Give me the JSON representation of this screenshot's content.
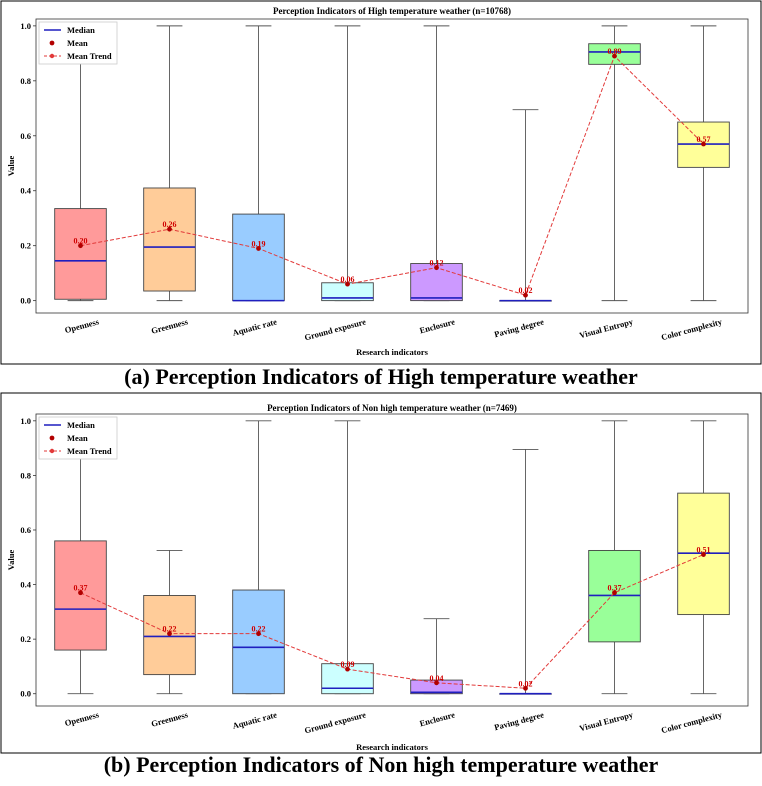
{
  "colors": {
    "median": "#1f1fbf",
    "mean": "#b20000",
    "trend": "#e23a3a",
    "box_fills": [
      "#ff9a9a",
      "#ffcc99",
      "#99ccff",
      "#ccffff",
      "#cc99ff",
      "#99ccff",
      "#99ff99",
      "#ffff99"
    ]
  },
  "legend": {
    "median": "Median",
    "mean": "Mean",
    "trend": "Mean Trend"
  },
  "chart_data": [
    {
      "type": "box",
      "title": "Perception Indicators of High temperature weather (n=10768)",
      "xlabel": "Research indicators",
      "ylabel": "Value",
      "ylim": [
        -0.045,
        1.025
      ],
      "yticks": [
        "0.0",
        "0.2",
        "0.4",
        "0.6",
        "0.8",
        "1.0"
      ],
      "categories": [
        "Openness",
        "Greenness",
        "Aquatic rate",
        "Ground exposure",
        "Enclosure",
        "Paving degree",
        "Visual Entropy",
        "Color complexity"
      ],
      "q1": [
        0.005,
        0.035,
        0.0,
        0.0,
        0.0,
        0.0,
        0.86,
        0.485
      ],
      "median": [
        0.145,
        0.195,
        0.0,
        0.01,
        0.01,
        0.0,
        0.905,
        0.57
      ],
      "q3": [
        0.335,
        0.41,
        0.315,
        0.065,
        0.135,
        0.0,
        0.935,
        0.65
      ],
      "whisker_low": [
        0.0,
        0.0,
        0.0,
        0.0,
        0.0,
        0.0,
        0.0,
        0.0
      ],
      "whisker_high": [
        1.0,
        1.0,
        1.0,
        1.0,
        1.0,
        0.695,
        1.0,
        1.0
      ],
      "means": [
        0.2,
        0.26,
        0.19,
        0.06,
        0.12,
        0.02,
        0.89,
        0.57
      ],
      "mean_labels": [
        "0.20",
        "0.26",
        "0.19",
        "0.06",
        "0.12",
        "0.02",
        "0.89",
        "0.57"
      ],
      "caption": "(a) Perception Indicators of High temperature weather"
    },
    {
      "type": "box",
      "title": "Perception Indicators of Non high temperature weather (n=7469)",
      "xlabel": "Research indicators",
      "ylabel": "Value",
      "ylim": [
        -0.045,
        1.025
      ],
      "yticks": [
        "0.0",
        "0.2",
        "0.4",
        "0.6",
        "0.8",
        "1.0"
      ],
      "categories": [
        "Openness",
        "Greenness",
        "Aquatic rate",
        "Ground exposure",
        "Enclosure",
        "Paving degree",
        "Visual Entropy",
        "Color complexity"
      ],
      "q1": [
        0.16,
        0.07,
        0.0,
        0.0,
        0.0,
        0.0,
        0.19,
        0.29
      ],
      "median": [
        0.31,
        0.21,
        0.17,
        0.02,
        0.005,
        0.0,
        0.36,
        0.515
      ],
      "q3": [
        0.56,
        0.36,
        0.38,
        0.11,
        0.05,
        0.0,
        0.525,
        0.735
      ],
      "whisker_low": [
        0.0,
        0.0,
        0.0,
        0.0,
        0.0,
        0.0,
        0.0,
        0.0
      ],
      "whisker_high": [
        1.0,
        0.525,
        1.0,
        1.0,
        0.275,
        0.895,
        1.0,
        1.0
      ],
      "means": [
        0.37,
        0.22,
        0.22,
        0.09,
        0.04,
        0.02,
        0.37,
        0.51
      ],
      "mean_labels": [
        "0.37",
        "0.22",
        "0.22",
        "0.09",
        "0.04",
        "0.02",
        "0.37",
        "0.51"
      ],
      "caption": "(b) Perception Indicators of Non high temperature weather"
    }
  ]
}
